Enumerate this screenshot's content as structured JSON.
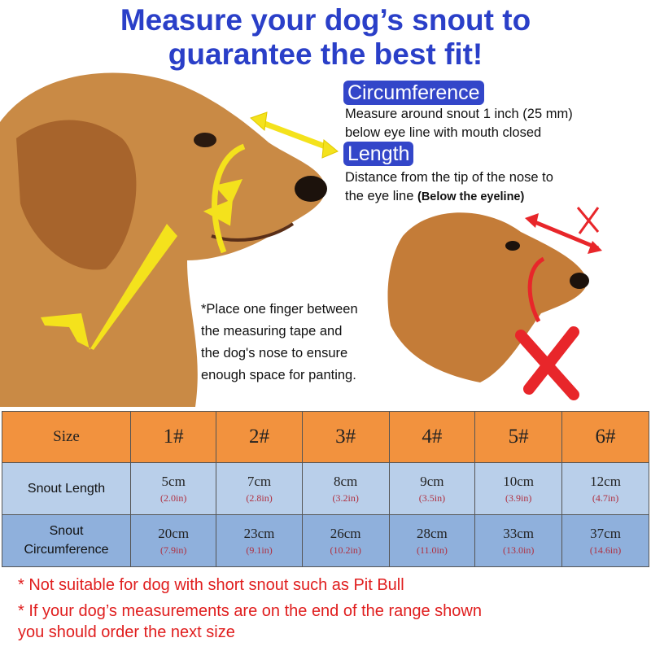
{
  "title": {
    "line1": "Measure your dog’s snout to",
    "line2": "guarantee the best fit!"
  },
  "circumference": {
    "label": "Circumference",
    "line1": "Measure around snout 1 inch (25 mm)",
    "line2": "below eye line with mouth closed"
  },
  "length": {
    "label": "Length",
    "line1": "Distance from the tip of the nose to",
    "line2_a": "the eye line ",
    "line2_b": "(Below the eyeline)"
  },
  "note": {
    "line1": "*Place one finger between",
    "line2": "the measuring tape and",
    "line3": "the dog's nose to ensure",
    "line4": "enough space for panting."
  },
  "colors": {
    "title": "#2a3fc8",
    "header": "#f2923e",
    "row1": "#b9cfea",
    "row2": "#8fb0dc",
    "warning": "#e01e1e",
    "check": "#f4e21c",
    "cross": "#e8262a"
  },
  "table": {
    "header_label": "Size",
    "sizes": [
      "1#",
      "2#",
      "3#",
      "4#",
      "5#",
      "6#"
    ],
    "rows": [
      {
        "label": "Snout Length",
        "cm": [
          "5cm",
          "7cm",
          "8cm",
          "9cm",
          "10cm",
          "12cm"
        ],
        "in": [
          "(2.0in)",
          "(2.8in)",
          "(3.2in)",
          "(3.5in)",
          "(3.9in)",
          "(4.7in)"
        ]
      },
      {
        "label_1": "Snout",
        "label_2": "Circumference",
        "cm": [
          "20cm",
          "23cm",
          "26cm",
          "28cm",
          "33cm",
          "37cm"
        ],
        "in": [
          "(7.9in)",
          "(9.1in)",
          "(10.2in)",
          "(11.0in)",
          "(13.0in)",
          "(14.6in)"
        ]
      }
    ]
  },
  "footnotes": {
    "line1": "* Not suitable for dog with short snout such as Pit Bull",
    "line2": "* If your dog’s measurements are on the end of the range shown",
    "line3": "you should order the next size"
  }
}
